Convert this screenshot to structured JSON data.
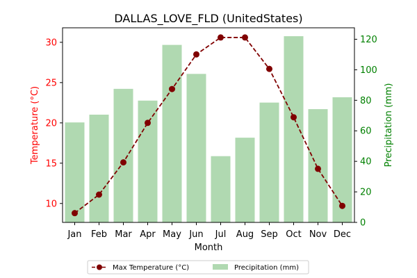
{
  "chart_data": {
    "type": "bar",
    "title": "DALLAS_LOVE_FLD (UnitedStates)",
    "xlabel": "Month",
    "categories": [
      "Jan",
      "Feb",
      "Mar",
      "Apr",
      "May",
      "Jun",
      "Jul",
      "Aug",
      "Sep",
      "Oct",
      "Nov",
      "Dec"
    ],
    "y_left": {
      "label": "Temperature (°C)",
      "ylim": [
        7.65,
        31.8
      ],
      "ticks": [
        10,
        15,
        20,
        25,
        30
      ],
      "color": "#ff0000"
    },
    "y_right": {
      "label": "Precipitation (mm)",
      "ylim": [
        0,
        127.5
      ],
      "ticks": [
        0,
        20,
        40,
        60,
        80,
        100,
        120
      ],
      "color": "#008000"
    },
    "series": [
      {
        "name": "Max Temperature (°C)",
        "type": "line",
        "axis": "left",
        "color": "#800000",
        "marker": "circle",
        "line_style": "dashed",
        "values": [
          8.8,
          11.1,
          15.1,
          20.0,
          24.2,
          28.5,
          30.6,
          30.6,
          26.7,
          20.7,
          14.3,
          9.7
        ]
      },
      {
        "name": "Precipitation (mm)",
        "type": "bar",
        "axis": "right",
        "color": "#b0d9b1",
        "values": [
          65.5,
          70.6,
          87.5,
          79.8,
          116.3,
          97.3,
          43.4,
          55.5,
          78.5,
          122.0,
          74.2,
          82.0
        ]
      }
    ],
    "legend": {
      "placement": "bottom-center",
      "columns": 2
    }
  }
}
